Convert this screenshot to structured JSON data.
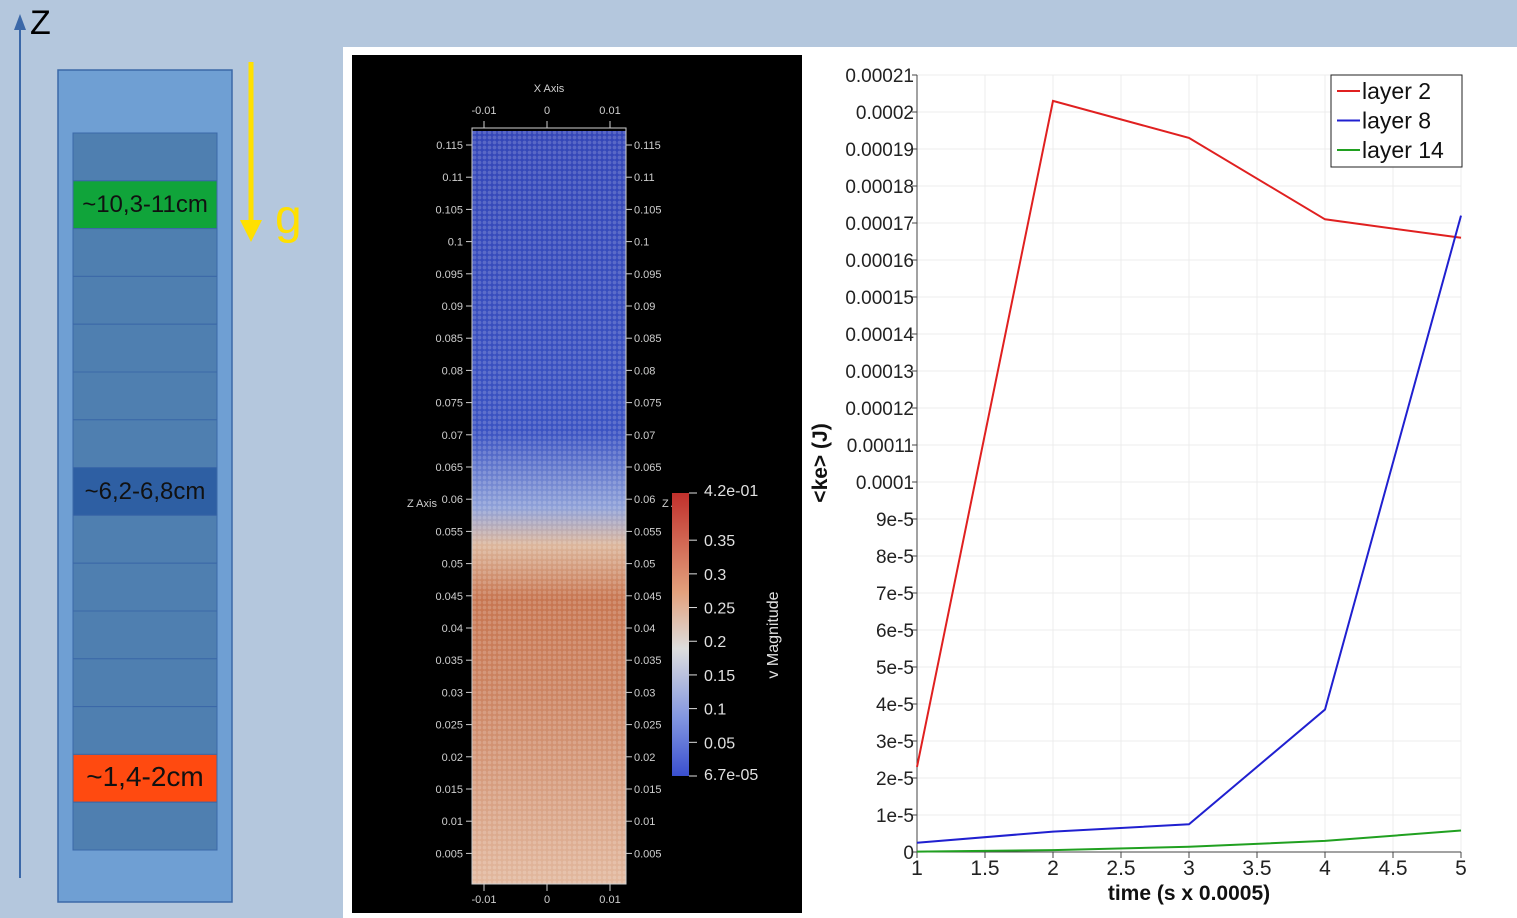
{
  "diagram": {
    "axis_label": "Z",
    "gravity_label": "g",
    "layers": [
      {
        "label": "",
        "color": "#4f7fb0"
      },
      {
        "label": "~10,3-11cm",
        "color": "#10a43a"
      },
      {
        "label": "",
        "color": "#4f7fb0"
      },
      {
        "label": "",
        "color": "#4f7fb0"
      },
      {
        "label": "",
        "color": "#4f7fb0"
      },
      {
        "label": "",
        "color": "#4f7fb0"
      },
      {
        "label": "",
        "color": "#4f7fb0"
      },
      {
        "label": "~6,2-6,8cm",
        "color": "#2e5fa3"
      },
      {
        "label": "",
        "color": "#4f7fb0"
      },
      {
        "label": "",
        "color": "#4f7fb0"
      },
      {
        "label": "",
        "color": "#4f7fb0"
      },
      {
        "label": "",
        "color": "#4f7fb0"
      },
      {
        "label": "",
        "color": "#4f7fb0"
      },
      {
        "label": "~1,4-2cm",
        "color": "#ff4a10"
      },
      {
        "label": "",
        "color": "#4f7fb0"
      }
    ],
    "colors": {
      "outer_box": "#6f9fd3",
      "arrow_axis": "#3b68a8",
      "gravity_arrow": "#ffe000"
    }
  },
  "render": {
    "x_axis_title": "X Axis",
    "z_axis_title": "Z Axis",
    "x_ticks": [
      "-0.01",
      "0",
      "0.01"
    ],
    "z_ticks": [
      "0.115",
      "0.11",
      "0.105",
      "0.1",
      "0.095",
      "0.09",
      "0.085",
      "0.08",
      "0.075",
      "0.07",
      "0.065",
      "0.06",
      "0.055",
      "0.05",
      "0.045",
      "0.04",
      "0.035",
      "0.03",
      "0.025",
      "0.02",
      "0.015",
      "0.01",
      "0.005"
    ],
    "colorbar": {
      "title": "v Magnitude",
      "max_label": "4.2e-01",
      "min_label": "6.7e-05",
      "ticks": [
        "0.35",
        "0.3",
        "0.25",
        "0.2",
        "0.15",
        "0.1",
        "0.05"
      ],
      "colors": {
        "high": "#c0302c",
        "mid": "#dddddd",
        "low": "#3a4fcf"
      }
    }
  },
  "chart_data": {
    "type": "line",
    "xlabel": "time (s x 0.0005)",
    "ylabel": "<ke> (J)",
    "xlim": [
      1,
      5
    ],
    "ylim": [
      0,
      0.00021
    ],
    "x_ticks": [
      "1",
      "1.5",
      "2",
      "2.5",
      "3",
      "3.5",
      "4",
      "4.5",
      "5"
    ],
    "y_ticks": [
      "0",
      "1e-5",
      "2e-5",
      "3e-5",
      "4e-5",
      "5e-5",
      "6e-5",
      "7e-5",
      "8e-5",
      "9e-5",
      "0.0001",
      "0.00011",
      "0.00012",
      "0.00013",
      "0.00014",
      "0.00015",
      "0.00016",
      "0.00017",
      "0.00018",
      "0.00019",
      "0.0002",
      "0.00021"
    ],
    "grid": true,
    "legend_position": "top-right",
    "series": [
      {
        "name": "layer 2",
        "color": "#e02020",
        "x": [
          1,
          2,
          3,
          4,
          5
        ],
        "y": [
          2.3e-05,
          0.000203,
          0.000193,
          0.000171,
          0.000166
        ]
      },
      {
        "name": "layer 8",
        "color": "#2020d0",
        "x": [
          1,
          2,
          3,
          4,
          5
        ],
        "y": [
          2.5e-06,
          5.5e-06,
          7.5e-06,
          3.85e-05,
          0.000172
        ]
      },
      {
        "name": "layer 14",
        "color": "#20a020",
        "x": [
          1,
          2,
          3,
          4,
          5
        ],
        "y": [
          1e-07,
          5e-07,
          1.4e-06,
          3e-06,
          5.8e-06
        ]
      }
    ]
  }
}
